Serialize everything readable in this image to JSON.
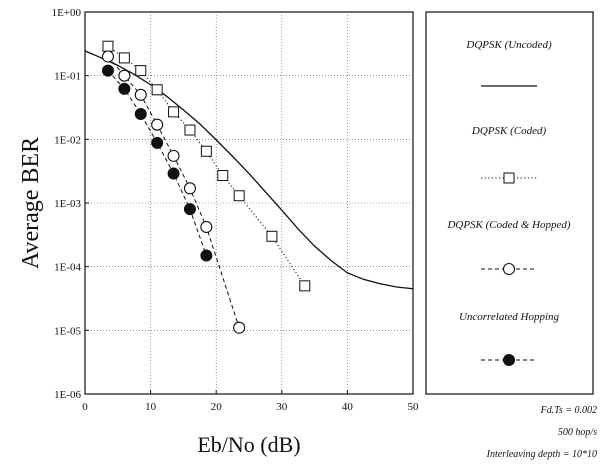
{
  "chart_data": {
    "type": "line",
    "xlabel": "Eb/No (dB)",
    "ylabel": "Average BER",
    "xlim": [
      0,
      50
    ],
    "ylim": [
      1e-06,
      1
    ],
    "yscale": "log",
    "x_ticks": [
      "0",
      "10",
      "20",
      "30",
      "40",
      "50"
    ],
    "y_ticks": [
      "1E+00",
      "1E-01",
      "1E-02",
      "1E-03",
      "1E-04",
      "1E-05",
      "1E-06"
    ],
    "grid": true,
    "legend_placement": "right-outside",
    "series": [
      {
        "name": "DQPSK (Uncoded)",
        "style": "solid-line",
        "color": "#111111",
        "points": [
          [
            0,
            0.245
          ],
          [
            2.5,
            0.19
          ],
          [
            5,
            0.145
          ],
          [
            7.5,
            0.105
          ],
          [
            10,
            0.072
          ],
          [
            12.5,
            0.047
          ],
          [
            15,
            0.029
          ],
          [
            17.5,
            0.0175
          ],
          [
            20,
            0.0098
          ],
          [
            22.5,
            0.0054
          ],
          [
            25,
            0.0029
          ],
          [
            27.5,
            0.0015
          ],
          [
            30,
            0.00077
          ],
          [
            32.5,
            0.00039
          ],
          [
            35,
            0.00021
          ],
          [
            37.5,
            0.000125
          ],
          [
            40,
            8e-05
          ],
          [
            42.5,
            6.3e-05
          ],
          [
            45,
            5.4e-05
          ],
          [
            47.5,
            4.8e-05
          ],
          [
            50,
            4.5e-05
          ]
        ]
      },
      {
        "name": "DQPSK (Coded)",
        "style": "dotted-square",
        "color": "#111111",
        "points": [
          [
            3.5,
            0.29
          ],
          [
            6,
            0.19
          ],
          [
            8.5,
            0.12
          ],
          [
            11,
            0.06
          ],
          [
            13.5,
            0.027
          ],
          [
            16,
            0.014
          ],
          [
            18.5,
            0.0065
          ],
          [
            21,
            0.0027
          ],
          [
            23.5,
            0.0013
          ],
          [
            28.5,
            0.0003
          ],
          [
            33.5,
            5e-05
          ]
        ]
      },
      {
        "name": "DQPSK (Coded & Hopped)",
        "style": "dashed-open-circle",
        "color": "#111111",
        "points": [
          [
            3.5,
            0.2
          ],
          [
            6,
            0.1
          ],
          [
            8.5,
            0.05
          ],
          [
            11,
            0.017
          ],
          [
            13.5,
            0.0055
          ],
          [
            16,
            0.0017
          ],
          [
            18.5,
            0.00042
          ],
          [
            23.5,
            1.1e-05
          ]
        ]
      },
      {
        "name": "Uncorrelated Hopping",
        "style": "dashed-filled-circle",
        "color": "#111111",
        "points": [
          [
            3.5,
            0.12
          ],
          [
            6,
            0.062
          ],
          [
            8.5,
            0.025
          ],
          [
            11,
            0.0088
          ],
          [
            13.5,
            0.0029
          ],
          [
            16,
            0.0008
          ],
          [
            18.5,
            0.00015
          ]
        ]
      }
    ],
    "annotations": [
      "Fd.Ts = 0.002",
      "500 hop/s",
      "Interleaving depth = 10*10"
    ]
  }
}
